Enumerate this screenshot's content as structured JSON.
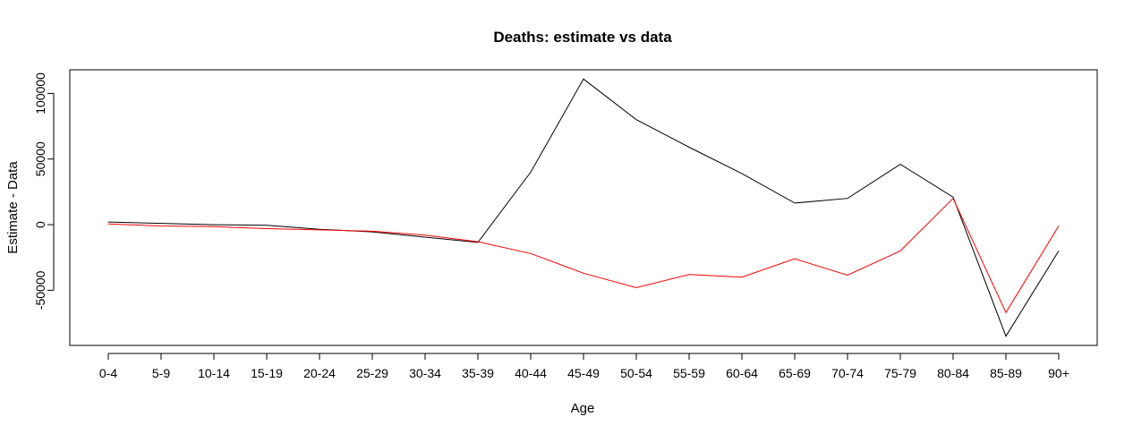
{
  "chart_data": {
    "type": "line",
    "title": "Deaths: estimate vs data",
    "xlabel": "Age",
    "ylabel": "Estimate - Data",
    "categories": [
      "0-4",
      "5-9",
      "10-14",
      "15-19",
      "20-24",
      "25-29",
      "30-34",
      "35-39",
      "40-44",
      "45-49",
      "50-54",
      "55-59",
      "60-64",
      "65-69",
      "70-74",
      "75-79",
      "80-84",
      "85-89",
      "90+"
    ],
    "yticks": [
      -50000,
      0,
      50000,
      100000
    ],
    "ylim": [
      -92000,
      118000
    ],
    "grid": false,
    "series": [
      {
        "color": "#000000",
        "values": [
          2000,
          1000,
          0,
          -500,
          -3500,
          -5500,
          -9500,
          -13500,
          40000,
          111000,
          80000,
          59000,
          39000,
          16500,
          20000,
          46000,
          21000,
          -85000,
          -20000
        ]
      },
      {
        "color": "#ff0000",
        "values": [
          500,
          -1000,
          -1500,
          -3000,
          -4000,
          -5000,
          -8000,
          -13000,
          -22000,
          -37000,
          -48000,
          -38000,
          -40000,
          -26000,
          -38500,
          -20000,
          20000,
          -67000,
          -1000
        ]
      }
    ]
  }
}
